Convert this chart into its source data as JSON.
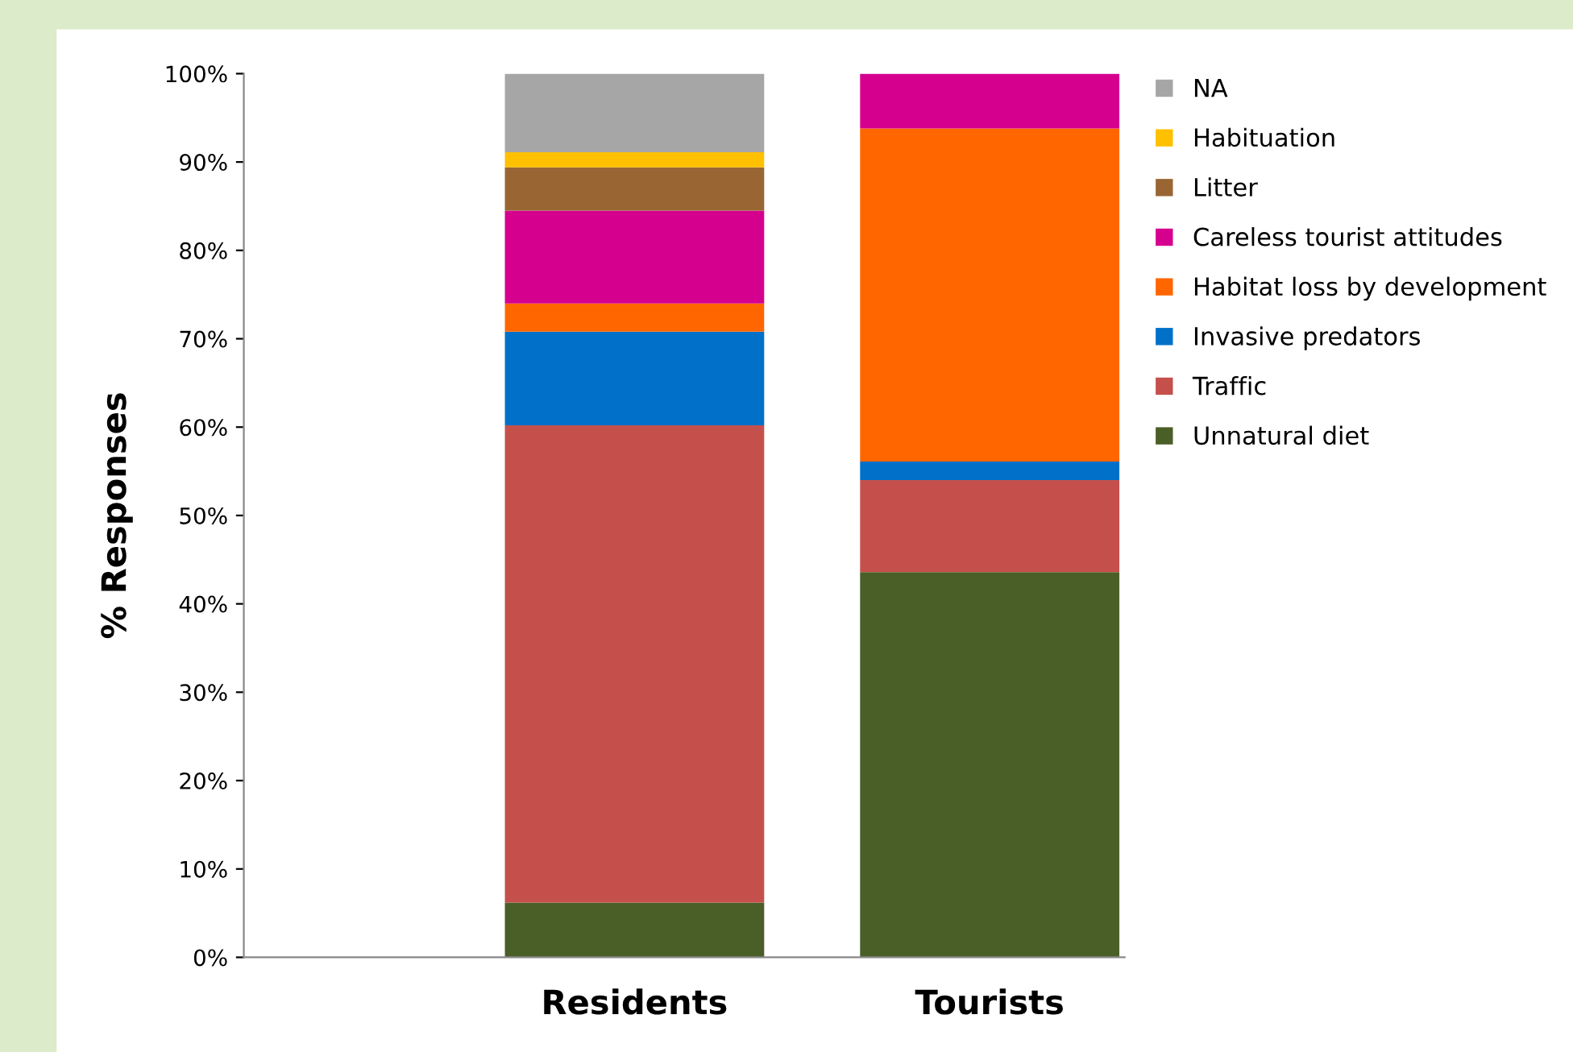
{
  "chart_data": {
    "type": "bar",
    "stacked": true,
    "ylabel": "% Responses",
    "categories": [
      "Residents",
      "Tourists"
    ],
    "series": [
      {
        "name": "Unnatural diet",
        "color": "#4a5f28",
        "values": [
          6.2,
          43.6
        ]
      },
      {
        "name": "Traffic",
        "color": "#c5504b",
        "values": [
          54.0,
          10.4
        ]
      },
      {
        "name": "Invasive predators",
        "color": "#0070c8",
        "values": [
          10.6,
          2.1
        ]
      },
      {
        "name": "Habitat loss by development",
        "color": "#ff6600",
        "values": [
          3.2,
          37.7
        ]
      },
      {
        "name": "Careless tourist attitudes",
        "color": "#d6008f",
        "values": [
          10.5,
          6.2
        ]
      },
      {
        "name": "Litter",
        "color": "#996633",
        "values": [
          4.9,
          0
        ]
      },
      {
        "name": "Habituation",
        "color": "#ffc000",
        "values": [
          1.7,
          0
        ]
      },
      {
        "name": "NA",
        "color": "#a6a6a6",
        "values": [
          8.9,
          0
        ]
      }
    ],
    "ylim": [
      0,
      100
    ],
    "yticks": [
      {
        "value": 0,
        "label": "0%"
      },
      {
        "value": 10,
        "label": "10%"
      },
      {
        "value": 20,
        "label": "20%"
      },
      {
        "value": 30,
        "label": "30%"
      },
      {
        "value": 40,
        "label": "40%"
      },
      {
        "value": 50,
        "label": "50%"
      },
      {
        "value": 60,
        "label": "60%"
      },
      {
        "value": 70,
        "label": "70%"
      },
      {
        "value": 80,
        "label": "80%"
      },
      {
        "value": 90,
        "label": "90%"
      },
      {
        "value": 100,
        "label": "100%"
      }
    ],
    "grid": false,
    "legend": "right"
  }
}
